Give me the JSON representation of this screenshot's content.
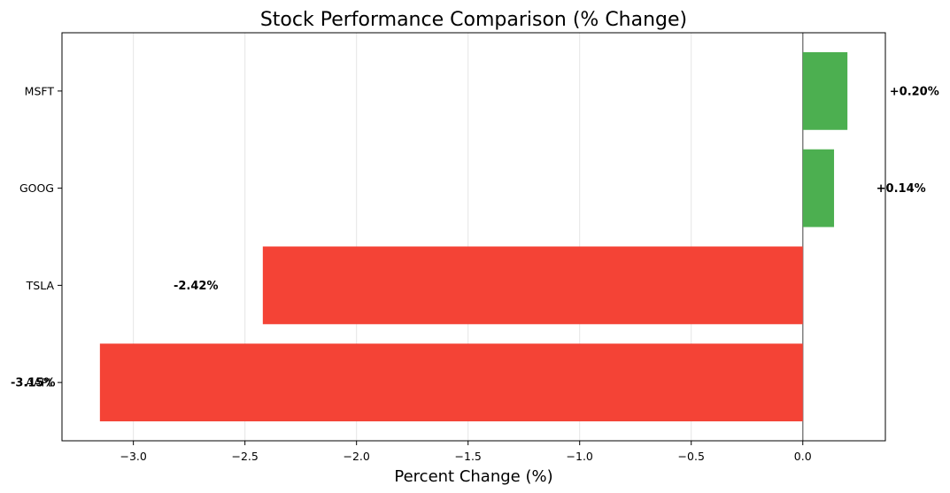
{
  "chart_data": {
    "type": "bar",
    "orientation": "horizontal",
    "title": "Stock Performance Comparison (% Change)",
    "xlabel": "Percent Change (%)",
    "ylabel": "",
    "categories": [
      "AAPL",
      "TSLA",
      "GOOG",
      "MSFT"
    ],
    "values": [
      -3.15,
      -2.42,
      0.14,
      0.2
    ],
    "data_labels": [
      "-3.15%",
      "-2.42%",
      "+0.14%",
      "+0.20%"
    ],
    "xlim": [
      -3.32,
      0.37
    ],
    "xticks": [
      -3.0,
      -2.5,
      -2.0,
      -1.5,
      -1.0,
      -0.5,
      0.0
    ],
    "xtick_labels": [
      "−3.0",
      "−2.5",
      "−2.0",
      "−1.5",
      "−1.0",
      "−0.5",
      "0.0"
    ],
    "grid": "x-axis only",
    "legend": "none",
    "colors": {
      "positive": "#4caf50",
      "negative": "#f44336",
      "zero_line": "#808080",
      "grid": "#e5e5e5"
    }
  }
}
